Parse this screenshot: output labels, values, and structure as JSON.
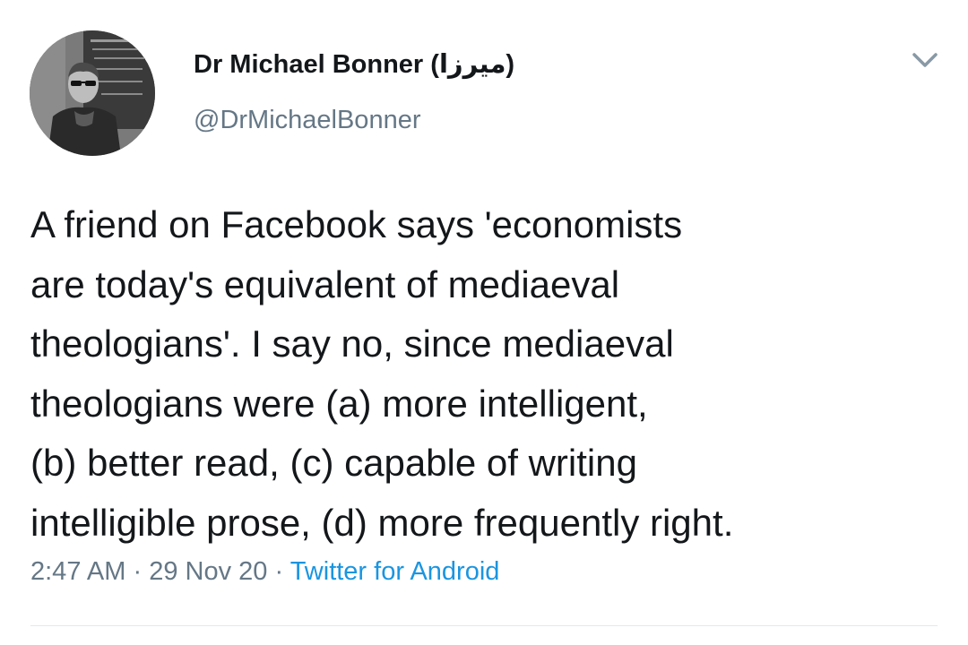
{
  "tweet": {
    "author": {
      "display_name": "Dr Michael Bonner (میرزا)",
      "handle": "@DrMichaelBonner"
    },
    "text": "A friend on Facebook says 'economists\nare today's equivalent of mediaeval\ntheologians'. I say no, since mediaeval\ntheologians were (a) more intelligent,\n(b) better read, (c) capable of writing\nintelligible prose, (d) more frequently right.",
    "time": "2:47 AM",
    "date": "29 Nov 20",
    "separator": "·",
    "source": "Twitter for Android"
  },
  "icons": {
    "menu_caret": "chevron-down-icon"
  },
  "colors": {
    "text_primary": "#14171a",
    "text_secondary": "#657786",
    "link": "#1b95e0",
    "divider": "#e1e8ed"
  }
}
